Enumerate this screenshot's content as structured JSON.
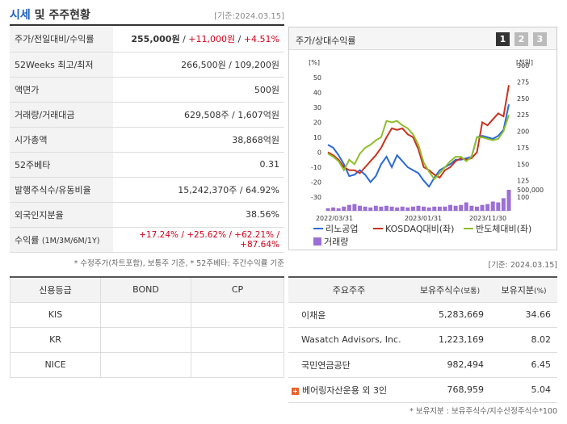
{
  "header": {
    "title_a": "시세",
    "title_b": " 및 주주현황",
    "date": "[기준:2024.03.15]"
  },
  "quote_rows": [
    {
      "key": "주가/전일대비/수익률",
      "v1": "255,000원",
      "sep1": " / ",
      "v2": "+11,000원",
      "sep2": " / ",
      "v3": "+4.51%"
    },
    {
      "key": "52Weeks 최고/최저",
      "value": "266,500원 / 109,200원"
    },
    {
      "key": "액면가",
      "value": "500원"
    },
    {
      "key": "거래량/거래대금",
      "value": "629,508주 / 1,607억원"
    },
    {
      "key": "시가총액",
      "value": "38,868억원"
    },
    {
      "key": "52주베타",
      "value": "0.31"
    },
    {
      "key": "발행주식수/유동비율",
      "value": "15,242,370주 / 64.92%"
    },
    {
      "key": "외국인지분율",
      "value": "38.56%"
    },
    {
      "key": "수익률",
      "key_sub": "(1M/3M/6M/1Y)",
      "value": "+17.24% / +25.62% / +62.21% / +87.64%"
    }
  ],
  "note1": "* 수정주가(차트포함), 보통주 기준, * 52주베타: 주간수익률 기준",
  "chart_panel": {
    "label": "주가/상대수익률",
    "tabs": [
      "1",
      "2",
      "3"
    ],
    "tab_colors": [
      "#333333",
      "#bbbbbb",
      "#bbbbbb"
    ]
  },
  "chart_data": {
    "type": "line",
    "left_axis_label": "[%]",
    "right_axis_label": "[천원]",
    "left_ticks": [
      "50",
      "40",
      "30",
      "20",
      "10",
      "0",
      "-10",
      "-20",
      "-30"
    ],
    "right_ticks": [
      "300",
      "275",
      "250",
      "225",
      "200",
      "175",
      "150",
      "125",
      "100"
    ],
    "volume_tick": "500,000",
    "x_labels": [
      "2022/03/31",
      "2023/01/31",
      "2023/11/30"
    ],
    "ylim_left": [
      -30,
      50
    ],
    "series": [
      {
        "name": "리노공업",
        "color": "#2a6ad6",
        "values": [
          5,
          3,
          -2,
          -8,
          -16,
          -15,
          -12,
          -15,
          -20,
          -16,
          -8,
          -3,
          -10,
          -2,
          -6,
          -10,
          -12,
          -14,
          -19,
          -23,
          -17,
          -12,
          -10,
          -8,
          -5,
          -5,
          -4,
          -3,
          10,
          11,
          10,
          9,
          11,
          15,
          32
        ]
      },
      {
        "name": "KOSDAQ대비(좌)",
        "color": "#c8331f",
        "values": [
          0,
          -2,
          -5,
          -10,
          -12,
          -12,
          -14,
          -10,
          -6,
          -2,
          3,
          10,
          16,
          15,
          16,
          12,
          10,
          2,
          -10,
          -12,
          -15,
          -17,
          -12,
          -10,
          -6,
          -4,
          -5,
          -4,
          0,
          20,
          18,
          22,
          26,
          24,
          45
        ]
      },
      {
        "name": "반도체대비(좌)",
        "color": "#8fbe2c",
        "values": [
          -1,
          -3,
          -6,
          -12,
          -5,
          -8,
          -1,
          3,
          5,
          8,
          10,
          21,
          20,
          21,
          18,
          16,
          12,
          5,
          -7,
          -13,
          -18,
          -14,
          -10,
          -6,
          -3,
          -3,
          -6,
          -3,
          10,
          10,
          9,
          8,
          9,
          14,
          25
        ]
      }
    ],
    "volume": [
      3,
      4,
      3,
      5,
      7,
      8,
      6,
      5,
      4,
      6,
      5,
      6,
      5,
      4,
      5,
      4,
      5,
      6,
      5,
      4,
      5,
      5,
      5,
      7,
      6,
      7,
      10,
      6,
      5,
      7,
      8,
      11,
      10,
      15,
      25
    ],
    "legend_extra": "거래량",
    "legend_extra_color": "#9b6fd4"
  },
  "date2": "[기준: 2024.03.15]",
  "credit": {
    "headers": [
      "신용등급",
      "BOND",
      "CP"
    ],
    "rows": [
      [
        "KIS",
        "",
        ""
      ],
      [
        "KR",
        "",
        ""
      ],
      [
        "NICE",
        "",
        ""
      ]
    ]
  },
  "shareholders": {
    "headers": [
      "주요주주",
      "보유주식수",
      "(보통)",
      "보유지분",
      "(%)"
    ],
    "rows": [
      {
        "name": "이채윤",
        "shares": "5,283,669",
        "pct": "34.66"
      },
      {
        "name": "Wasatch Advisors, Inc.",
        "shares": "1,223,169",
        "pct": "8.02"
      },
      {
        "name": "국민연금공단",
        "shares": "982,494",
        "pct": "6.45"
      },
      {
        "name": "베어링자산운용 외 3인",
        "shares": "768,959",
        "pct": "5.04"
      }
    ],
    "expand_icon": "+"
  },
  "note2": "* 보유지분 : 보유주식수/지수산정주식수*100"
}
